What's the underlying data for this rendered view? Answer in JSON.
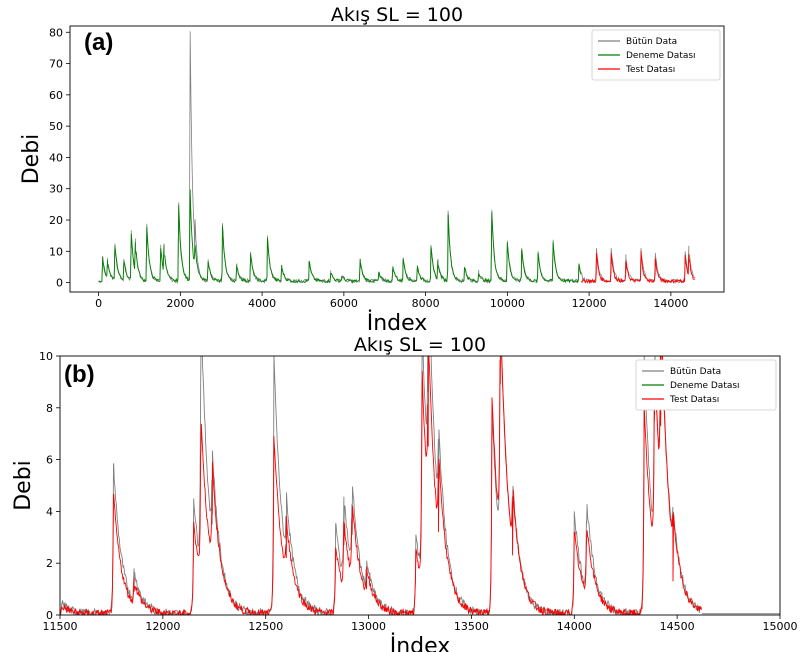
{
  "chart_data": [
    {
      "type": "line",
      "panel_label": "(a)",
      "title": "Akış SL = 100",
      "xlabel": "İndex",
      "ylabel": "Debi",
      "xlim": [
        -700,
        15300
      ],
      "ylim": [
        -3,
        82
      ],
      "xticks": [
        0,
        2000,
        4000,
        6000,
        8000,
        10000,
        12000,
        14000
      ],
      "yticks": [
        0,
        10,
        20,
        30,
        40,
        50,
        60,
        70,
        80
      ],
      "legend_position": "top-right",
      "legend": [
        "Bütün Data",
        "Deneme Datası",
        "Test Datası"
      ],
      "colors": {
        "all": "#808080",
        "train": "#008000",
        "test": "#ff0000"
      },
      "train_range": [
        0,
        11800
      ],
      "test_range": [
        11800,
        14600
      ],
      "peaks": [
        [
          100,
          8
        ],
        [
          220,
          6
        ],
        [
          400,
          12
        ],
        [
          620,
          7
        ],
        [
          800,
          16
        ],
        [
          900,
          10
        ],
        [
          1180,
          18
        ],
        [
          1520,
          11
        ],
        [
          1600,
          9
        ],
        [
          1960,
          25
        ],
        [
          2240,
          80
        ],
        [
          2350,
          10
        ],
        [
          2680,
          7
        ],
        [
          3030,
          19
        ],
        [
          3380,
          5
        ],
        [
          3720,
          9
        ],
        [
          4130,
          15
        ],
        [
          4480,
          5
        ],
        [
          5150,
          7
        ],
        [
          5680,
          3
        ],
        [
          5950,
          2
        ],
        [
          6400,
          7
        ],
        [
          6850,
          3
        ],
        [
          7200,
          5
        ],
        [
          7450,
          8
        ],
        [
          7800,
          5
        ],
        [
          8130,
          12
        ],
        [
          8300,
          6
        ],
        [
          8550,
          23
        ],
        [
          8950,
          5
        ],
        [
          9300,
          3
        ],
        [
          9620,
          23
        ],
        [
          10000,
          13
        ],
        [
          10350,
          11
        ],
        [
          10750,
          10
        ],
        [
          11120,
          13
        ],
        [
          11750,
          6
        ],
        [
          12180,
          11
        ],
        [
          12540,
          11
        ],
        [
          12900,
          8
        ],
        [
          13270,
          11
        ],
        [
          13620,
          9
        ],
        [
          14350,
          10
        ],
        [
          14440,
          9
        ]
      ]
    },
    {
      "type": "line",
      "panel_label": "(b)",
      "title": "Akış SL = 100",
      "xlabel": "İndex",
      "ylabel": "Debi",
      "xlim": [
        11500,
        15000
      ],
      "ylim": [
        0,
        10
      ],
      "xticks": [
        11500,
        12000,
        12500,
        13000,
        13500,
        14000,
        14500,
        15000
      ],
      "yticks": [
        0,
        2,
        4,
        6,
        8,
        10
      ],
      "legend_position": "top-right",
      "legend": [
        "Bütün Data",
        "Deneme Datası",
        "Test Datası"
      ],
      "colors": {
        "all": "#808080",
        "train": "#008000",
        "test": "#ff0000"
      },
      "peaks_all": [
        [
          11510,
          0.4
        ],
        [
          11760,
          5.8
        ],
        [
          11860,
          1.2
        ],
        [
          12150,
          4.5
        ],
        [
          12185,
          10
        ],
        [
          12240,
          3.5
        ],
        [
          12540,
          10
        ],
        [
          12600,
          2.5
        ],
        [
          12840,
          3.5
        ],
        [
          12880,
          3.4
        ],
        [
          12920,
          3.5
        ],
        [
          12990,
          1.2
        ],
        [
          13230,
          3.1
        ],
        [
          13260,
          10
        ],
        [
          13290,
          8.6
        ],
        [
          13340,
          3.5
        ],
        [
          13600,
          7.8
        ],
        [
          13640,
          8.9
        ],
        [
          13700,
          2.5
        ],
        [
          14000,
          4
        ],
        [
          14060,
          3.5
        ],
        [
          14340,
          10
        ],
        [
          14390,
          7.5
        ],
        [
          14420,
          7.6
        ],
        [
          14480,
          1.5
        ]
      ],
      "peaks_test": [
        [
          11510,
          0.3
        ],
        [
          11760,
          4.6
        ],
        [
          11860,
          0.9
        ],
        [
          12150,
          3.6
        ],
        [
          12185,
          6.3
        ],
        [
          12240,
          3.9
        ],
        [
          12540,
          6.9
        ],
        [
          12600,
          2.2
        ],
        [
          12840,
          2.6
        ],
        [
          12880,
          2.7
        ],
        [
          12920,
          3.1
        ],
        [
          12990,
          1
        ],
        [
          13230,
          2.5
        ],
        [
          13260,
          8.3
        ],
        [
          13290,
          6.5
        ],
        [
          13340,
          3.2
        ],
        [
          13600,
          8.4
        ],
        [
          13640,
          8.9
        ],
        [
          13700,
          2.3
        ],
        [
          14000,
          3.2
        ],
        [
          14060,
          2.8
        ],
        [
          14340,
          8.1
        ],
        [
          14390,
          7.7
        ],
        [
          14420,
          7.3
        ],
        [
          14480,
          1.3
        ]
      ]
    }
  ]
}
